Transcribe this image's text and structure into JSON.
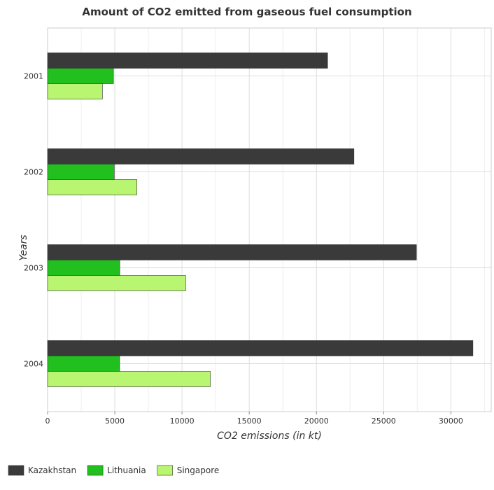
{
  "chart_data": {
    "type": "bar",
    "orientation": "horizontal",
    "title": "Amount of CO2 emitted from gaseous fuel consumption",
    "xlabel": "CO2 emissions (in kt)",
    "ylabel": "Years",
    "categories": [
      "2001",
      "2002",
      "2003",
      "2004"
    ],
    "xlim": [
      0,
      33000
    ],
    "xticks": [
      0,
      5000,
      10000,
      15000,
      20000,
      25000,
      30000
    ],
    "grid": true,
    "legend_position": "bottom-left",
    "series": [
      {
        "name": "Kazakhstan",
        "color": "#3a3a3a",
        "values": [
          20830,
          22790,
          27440,
          31640
        ]
      },
      {
        "name": "Lithuania",
        "color": "#22c01e",
        "values": [
          4900,
          4960,
          5370,
          5360
        ]
      },
      {
        "name": "Singapore",
        "color": "#b8f570",
        "values": [
          4080,
          6640,
          10270,
          12110
        ]
      }
    ]
  }
}
